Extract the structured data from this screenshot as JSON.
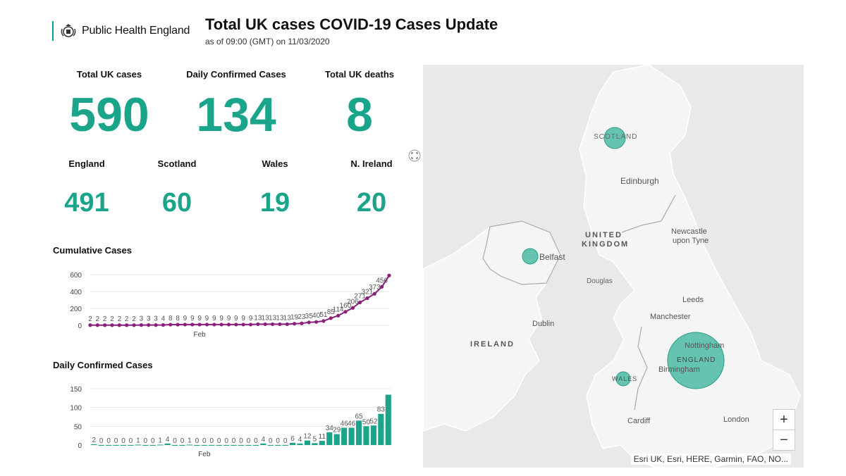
{
  "header": {
    "brand": "Public Health England",
    "title": "Total UK cases COVID-19 Cases Update",
    "subtitle": "as of 09:00 (GMT) on 11/03/2020"
  },
  "totals": [
    {
      "label": "Total UK cases",
      "value": "590"
    },
    {
      "label": "Daily Confirmed Cases",
      "value": "134"
    },
    {
      "label": "Total UK deaths",
      "value": "8"
    }
  ],
  "nations": [
    {
      "label": "England",
      "value": "491"
    },
    {
      "label": "Scotland",
      "value": "60"
    },
    {
      "label": "Wales",
      "value": "19"
    },
    {
      "label": "N. Ireland",
      "value": "20"
    }
  ],
  "colors": {
    "accent": "#1aa58a",
    "cumulative_line": "#8b1f7a",
    "bar": "#1aa58a"
  },
  "chart_data": [
    {
      "type": "line",
      "title": "Cumulative Cases",
      "x_tick_labels": [
        "Feb"
      ],
      "y_ticks": [
        0,
        200,
        400,
        600
      ],
      "ylim": [
        0,
        600
      ],
      "point_labels": [
        "2",
        "2",
        "2",
        "2",
        "2",
        "2",
        "2",
        "3",
        "3",
        "3",
        "4",
        "8",
        "8",
        "9",
        "9",
        "9",
        "9",
        "9",
        "9",
        "9",
        "9",
        "9",
        "9",
        "13",
        "13",
        "13",
        "13",
        "13",
        "19",
        "23",
        "35",
        "40",
        "51",
        "85",
        "114",
        "160",
        "206",
        "271",
        "321",
        "373",
        "456",
        ""
      ],
      "values": [
        2,
        2,
        2,
        2,
        2,
        2,
        2,
        3,
        3,
        3,
        4,
        8,
        8,
        9,
        9,
        9,
        9,
        9,
        9,
        9,
        9,
        9,
        9,
        13,
        13,
        13,
        13,
        13,
        19,
        23,
        35,
        40,
        51,
        85,
        114,
        160,
        206,
        271,
        321,
        373,
        456,
        590
      ]
    },
    {
      "type": "bar",
      "title": "Daily Confirmed Cases",
      "x_tick_labels": [
        "Feb"
      ],
      "y_ticks": [
        0,
        50,
        100,
        150
      ],
      "ylim": [
        0,
        150
      ],
      "bar_labels": [
        "2",
        "0",
        "0",
        "0",
        "0",
        "0",
        "1",
        "0",
        "0",
        "1",
        "4",
        "0",
        "0",
        "1",
        "0",
        "0",
        "0",
        "0",
        "0",
        "0",
        "0",
        "0",
        "0",
        "4",
        "0",
        "0",
        "0",
        "6",
        "4",
        "12",
        "5",
        "11",
        "34",
        "29",
        "46",
        "46",
        "65",
        "50",
        "52",
        "83",
        ""
      ],
      "values": [
        2,
        0,
        0,
        0,
        0,
        0,
        1,
        0,
        0,
        1,
        4,
        0,
        0,
        1,
        0,
        0,
        0,
        0,
        0,
        0,
        0,
        0,
        0,
        4,
        0,
        0,
        0,
        6,
        4,
        12,
        5,
        11,
        34,
        29,
        46,
        46,
        65,
        50,
        52,
        83,
        134
      ]
    }
  ],
  "map": {
    "labels": [
      "SCOTLAND",
      "Edinburgh",
      "UNITED",
      "KINGDOM",
      "Newcastle",
      "upon Tyne",
      "Belfast",
      "Douglas",
      "Leeds",
      "Manchester",
      "Dublin",
      "IRELAND",
      "Nottingham",
      "ENGLAND",
      "Birmingham",
      "WALES",
      "Cardiff",
      "London"
    ],
    "zoom_in": "+",
    "zoom_out": "−",
    "attribution": "Esri UK, Esri, HERE, Garmin, FAO, NO..."
  }
}
